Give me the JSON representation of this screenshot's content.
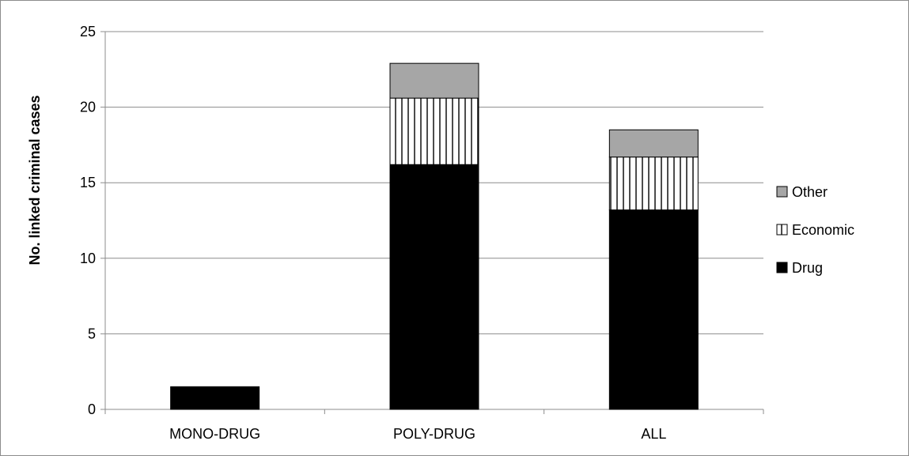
{
  "chart_data": {
    "type": "bar",
    "stacked": true,
    "title": "",
    "xlabel": "",
    "ylabel": "No. linked criminal cases",
    "ylim": [
      0,
      25
    ],
    "yticks": [
      "0",
      "5",
      "10",
      "15",
      "20",
      "25"
    ],
    "grid": true,
    "legend_position": "right",
    "categories": [
      "MONO-DRUG",
      "POLY-DRUG",
      "ALL"
    ],
    "series": [
      {
        "name": "Drug",
        "values": [
          1.5,
          16.2,
          13.2
        ],
        "color": "#000000",
        "pattern": "solid"
      },
      {
        "name": "Economic",
        "values": [
          0,
          4.4,
          3.5
        ],
        "color": "#ffffff",
        "pattern": "vertical-stripes"
      },
      {
        "name": "Other",
        "values": [
          0,
          2.3,
          1.8
        ],
        "color": "#a6a6a6",
        "pattern": "solid"
      }
    ],
    "colors": {
      "gridline": "#8c8c8c",
      "axis": "#8c8c8c",
      "bar_outline": "#000000"
    }
  }
}
